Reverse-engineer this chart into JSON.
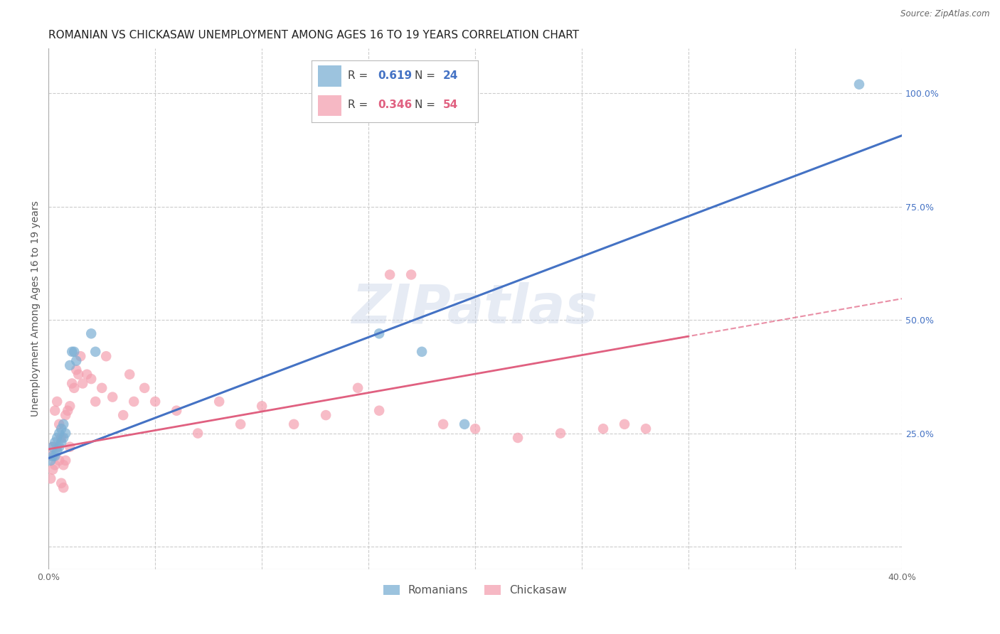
{
  "title": "ROMANIAN VS CHICKASAW UNEMPLOYMENT AMONG AGES 16 TO 19 YEARS CORRELATION CHART",
  "source": "Source: ZipAtlas.com",
  "ylabel": "Unemployment Among Ages 16 to 19 years",
  "xlim": [
    0.0,
    0.4
  ],
  "ylim": [
    -0.05,
    1.1
  ],
  "x_ticks": [
    0.0,
    0.05,
    0.1,
    0.15,
    0.2,
    0.25,
    0.3,
    0.35,
    0.4
  ],
  "y_ticks_right": [
    0.0,
    0.25,
    0.5,
    0.75,
    1.0
  ],
  "grid_color": "#cccccc",
  "background_color": "#ffffff",
  "watermark": "ZIPatlas",
  "legend_blue_R": "0.619",
  "legend_blue_N": "24",
  "legend_pink_R": "0.346",
  "legend_pink_N": "54",
  "blue_color": "#7bafd4",
  "pink_color": "#f4a0b0",
  "blue_line_color": "#4472c4",
  "pink_line_color": "#e06080",
  "title_fontsize": 11,
  "axis_label_fontsize": 10,
  "tick_fontsize": 9,
  "romanians_x": [
    0.001,
    0.002,
    0.002,
    0.003,
    0.003,
    0.004,
    0.004,
    0.005,
    0.005,
    0.006,
    0.006,
    0.007,
    0.007,
    0.008,
    0.01,
    0.011,
    0.012,
    0.013,
    0.02,
    0.022,
    0.155,
    0.175,
    0.195,
    0.38
  ],
  "romanians_y": [
    0.19,
    0.2,
    0.22,
    0.2,
    0.23,
    0.21,
    0.24,
    0.22,
    0.25,
    0.23,
    0.26,
    0.24,
    0.27,
    0.25,
    0.4,
    0.43,
    0.43,
    0.41,
    0.47,
    0.43,
    0.47,
    0.43,
    0.27,
    1.02
  ],
  "chickasaw_x": [
    0.001,
    0.001,
    0.002,
    0.002,
    0.003,
    0.003,
    0.004,
    0.004,
    0.005,
    0.005,
    0.006,
    0.006,
    0.007,
    0.007,
    0.008,
    0.008,
    0.009,
    0.01,
    0.01,
    0.011,
    0.012,
    0.013,
    0.014,
    0.015,
    0.016,
    0.018,
    0.02,
    0.022,
    0.025,
    0.027,
    0.03,
    0.035,
    0.038,
    0.04,
    0.045,
    0.05,
    0.06,
    0.07,
    0.08,
    0.09,
    0.1,
    0.115,
    0.13,
    0.145,
    0.155,
    0.16,
    0.17,
    0.185,
    0.2,
    0.22,
    0.24,
    0.26,
    0.27,
    0.28
  ],
  "chickasaw_y": [
    0.2,
    0.15,
    0.17,
    0.22,
    0.18,
    0.3,
    0.32,
    0.22,
    0.27,
    0.19,
    0.14,
    0.24,
    0.13,
    0.18,
    0.19,
    0.29,
    0.3,
    0.31,
    0.22,
    0.36,
    0.35,
    0.39,
    0.38,
    0.42,
    0.36,
    0.38,
    0.37,
    0.32,
    0.35,
    0.42,
    0.33,
    0.29,
    0.38,
    0.32,
    0.35,
    0.32,
    0.3,
    0.25,
    0.32,
    0.27,
    0.31,
    0.27,
    0.29,
    0.35,
    0.3,
    0.6,
    0.6,
    0.27,
    0.26,
    0.24,
    0.25,
    0.26,
    0.27,
    0.26
  ]
}
